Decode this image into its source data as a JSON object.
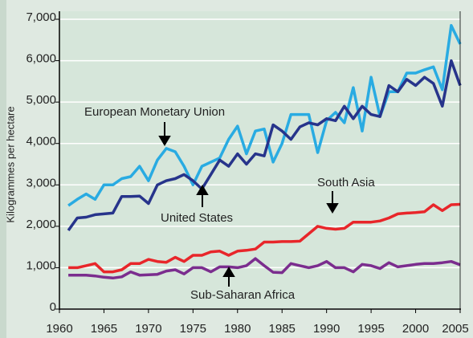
{
  "chart_data": {
    "type": "line",
    "y_label": "Kilogrammes per hectare",
    "x": [
      1961,
      1962,
      1963,
      1964,
      1965,
      1966,
      1967,
      1968,
      1969,
      1970,
      1971,
      1972,
      1973,
      1974,
      1975,
      1976,
      1977,
      1978,
      1979,
      1980,
      1981,
      1982,
      1983,
      1984,
      1985,
      1986,
      1987,
      1988,
      1989,
      1990,
      1991,
      1992,
      1993,
      1994,
      1995,
      1996,
      1997,
      1998,
      1999,
      2000,
      2001,
      2002,
      2003,
      2004,
      2005
    ],
    "series": [
      {
        "name": "European Monetary Union",
        "color": "#29abe2",
        "values": [
          2500,
          2650,
          2780,
          2650,
          3000,
          3000,
          3150,
          3200,
          3450,
          3100,
          3600,
          3880,
          3800,
          3450,
          3000,
          3450,
          3550,
          3650,
          4100,
          4420,
          3750,
          4300,
          4350,
          3550,
          4000,
          4700,
          4700,
          4700,
          3780,
          4550,
          4750,
          4500,
          5350,
          4300,
          5600,
          4650,
          5250,
          5250,
          5700,
          5700,
          5780,
          5850,
          5300,
          6850,
          6400
        ]
      },
      {
        "name": "United States",
        "color": "#27348b",
        "values": [
          1900,
          2200,
          2220,
          2280,
          2300,
          2320,
          2720,
          2720,
          2730,
          2550,
          3000,
          3100,
          3150,
          3250,
          3100,
          2900,
          3250,
          3600,
          3450,
          3750,
          3500,
          3750,
          3700,
          4450,
          4300,
          4100,
          4400,
          4500,
          4450,
          4600,
          4550,
          4900,
          4600,
          4900,
          4700,
          4650,
          5400,
          5250,
          5550,
          5400,
          5600,
          5450,
          4900,
          6000,
          5400
        ]
      },
      {
        "name": "South Asia",
        "color": "#e8262a",
        "values": [
          1000,
          1000,
          1050,
          1100,
          900,
          900,
          950,
          1100,
          1100,
          1200,
          1150,
          1130,
          1250,
          1150,
          1300,
          1300,
          1380,
          1400,
          1300,
          1400,
          1420,
          1450,
          1620,
          1620,
          1630,
          1630,
          1640,
          1820,
          2000,
          1950,
          1930,
          1950,
          2100,
          2100,
          2100,
          2130,
          2200,
          2300,
          2320,
          2330,
          2350,
          2520,
          2380,
          2520,
          2530
        ]
      },
      {
        "name": "Sub-Saharan Africa",
        "color": "#7b2d8e",
        "values": [
          820,
          820,
          820,
          800,
          770,
          750,
          780,
          900,
          820,
          830,
          840,
          920,
          950,
          850,
          1000,
          1000,
          900,
          1020,
          1020,
          1000,
          1050,
          1220,
          1050,
          890,
          880,
          1100,
          1050,
          1000,
          1050,
          1150,
          1000,
          1000,
          900,
          1080,
          1050,
          980,
          1120,
          1020,
          1050,
          1080,
          1100,
          1100,
          1120,
          1150,
          1070
        ]
      }
    ],
    "xlim": [
      1960,
      2005
    ],
    "xticks": [
      1960,
      1965,
      1970,
      1975,
      1980,
      1985,
      1990,
      1995,
      2000,
      2005
    ],
    "ylim": [
      0,
      7000
    ],
    "yticks": [
      0,
      {
        "value": 1000,
        "label": "1,000"
      },
      {
        "value": 2000,
        "label": "2,000"
      },
      {
        "value": 3000,
        "label": "3,000"
      },
      {
        "value": 4000,
        "label": "4,000"
      },
      {
        "value": 5000,
        "label": "5,000"
      },
      {
        "value": 6000,
        "label": "6,000"
      },
      {
        "value": 7000,
        "label": "7,000"
      }
    ],
    "grid": true
  }
}
